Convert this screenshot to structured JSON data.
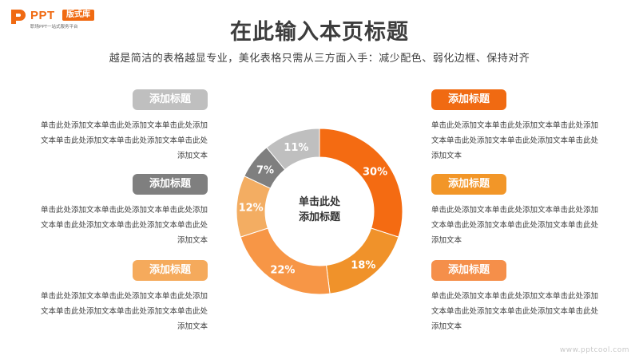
{
  "logo": {
    "word": "PPT",
    "badge": "版式库",
    "tagline": "职场PPT一站式服务平台"
  },
  "title": "在此输入本页标题",
  "subtitle": "越是简洁的表格越显专业，美化表格只需从三方面入手：减少配色、弱化边框、保持对齐",
  "items": {
    "left": [
      {
        "label": "添加标题",
        "color": "#bfbfbf",
        "text": "单击此处添加文本单击此处添加文本单击此处添加文本单击此处添加文本单击此处添加文本单击此处添加文本"
      },
      {
        "label": "添加标题",
        "color": "#7f7f7f",
        "text": "单击此处添加文本单击此处添加文本单击此处添加文本单击此处添加文本单击此处添加文本单击此处添加文本"
      },
      {
        "label": "添加标题",
        "color": "#f5aa5c",
        "text": "单击此处添加文本单击此处添加文本单击此处添加文本单击此处添加文本单击此处添加文本单击此处添加文本"
      }
    ],
    "right": [
      {
        "label": "添加标题",
        "color": "#f06a12",
        "text": "单击此处添加文本单击此处添加文本单击此处添加文本单击此处添加文本单击此处添加文本单击此处添加文本"
      },
      {
        "label": "添加标题",
        "color": "#f29628",
        "text": "单击此处添加文本单击此处添加文本单击此处添加文本单击此处添加文本单击此处添加文本单击此处添加文本"
      },
      {
        "label": "添加标题",
        "color": "#f58f4a",
        "text": "单击此处添加文本单击此处添加文本单击此处添加文本单击此处添加文本单击此处添加文本单击此处添加文本"
      }
    ]
  },
  "center_label": {
    "line1": "单击此处",
    "line2": "添加标题"
  },
  "chart_data": {
    "type": "pie",
    "style": "donut",
    "slices": [
      {
        "label": "30%",
        "value": 30,
        "color": "#f46b12"
      },
      {
        "label": "18%",
        "value": 18,
        "color": "#f0922a"
      },
      {
        "label": "22%",
        "value": 22,
        "color": "#f79646"
      },
      {
        "label": "12%",
        "value": 12,
        "color": "#f3ad62"
      },
      {
        "label": "7%",
        "value": 7,
        "color": "#7f7f7f"
      },
      {
        "label": "11%",
        "value": 11,
        "color": "#bfbfbf"
      }
    ]
  },
  "watermark": "www.pptcool.com"
}
